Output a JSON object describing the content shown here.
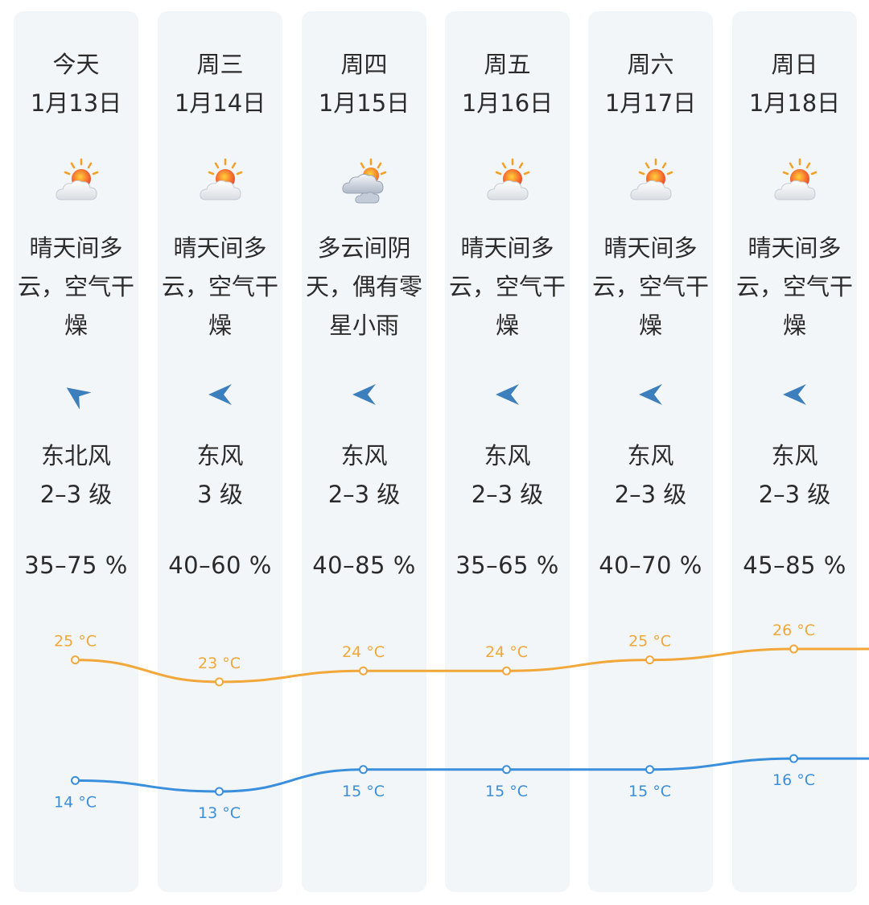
{
  "days": [
    {
      "day": "今天",
      "date": "1月13日",
      "icon": "sun-cloud-icon",
      "condition": "晴天间多云，空气干燥",
      "wind_direction_icon": "arrow-northeast-icon",
      "wind_dir": "东北风",
      "wind_level": "2–3 级",
      "humidity": "35–75 %",
      "high": "25 °C",
      "low": "14 °C"
    },
    {
      "day": "周三",
      "date": "1月14日",
      "icon": "sun-cloud-icon",
      "condition": "晴天间多云，空气干燥",
      "wind_direction_icon": "arrow-east-icon",
      "wind_dir": "东风",
      "wind_level": "3 级",
      "humidity": "40–60 %",
      "high": "23 °C",
      "low": "13 °C"
    },
    {
      "day": "周四",
      "date": "1月15日",
      "icon": "cloud-sun-icon",
      "condition": "多云间阴天，偶有零星小雨",
      "wind_direction_icon": "arrow-east-icon",
      "wind_dir": "东风",
      "wind_level": "2–3 级",
      "humidity": "40–85 %",
      "high": "24 °C",
      "low": "15 °C"
    },
    {
      "day": "周五",
      "date": "1月16日",
      "icon": "sun-cloud-icon",
      "condition": "晴天间多云，空气干燥",
      "wind_direction_icon": "arrow-east-icon",
      "wind_dir": "东风",
      "wind_level": "2–3 级",
      "humidity": "35–65 %",
      "high": "24 °C",
      "low": "15 °C"
    },
    {
      "day": "周六",
      "date": "1月17日",
      "icon": "sun-cloud-icon",
      "condition": "晴天间多云，空气干燥",
      "wind_direction_icon": "arrow-east-icon",
      "wind_dir": "东风",
      "wind_level": "2–3 级",
      "humidity": "40–70 %",
      "high": "25 °C",
      "low": "15 °C"
    },
    {
      "day": "周日",
      "date": "1月18日",
      "icon": "sun-cloud-icon",
      "condition": "晴天间多云，空气干燥",
      "wind_direction_icon": "arrow-east-icon",
      "wind_dir": "东风",
      "wind_level": "2–3 级",
      "humidity": "45–85 %",
      "high": "26 °C",
      "low": "16 °C"
    }
  ],
  "chart_data": {
    "type": "line",
    "categories": [
      "今天",
      "周三",
      "周四",
      "周五",
      "周六",
      "周日"
    ],
    "series": [
      {
        "values": [
          25,
          23,
          24,
          24,
          25,
          26
        ],
        "unit": "°C",
        "color": "#f2a73a"
      },
      {
        "values": [
          14,
          13,
          15,
          15,
          15,
          16
        ],
        "unit": "°C",
        "color": "#3a8fdc"
      }
    ]
  },
  "colors": {
    "high": "#f2a73a",
    "low": "#3a8fdc",
    "column_bg": "#f3f6f9",
    "arrow": "#3d7fbd"
  }
}
